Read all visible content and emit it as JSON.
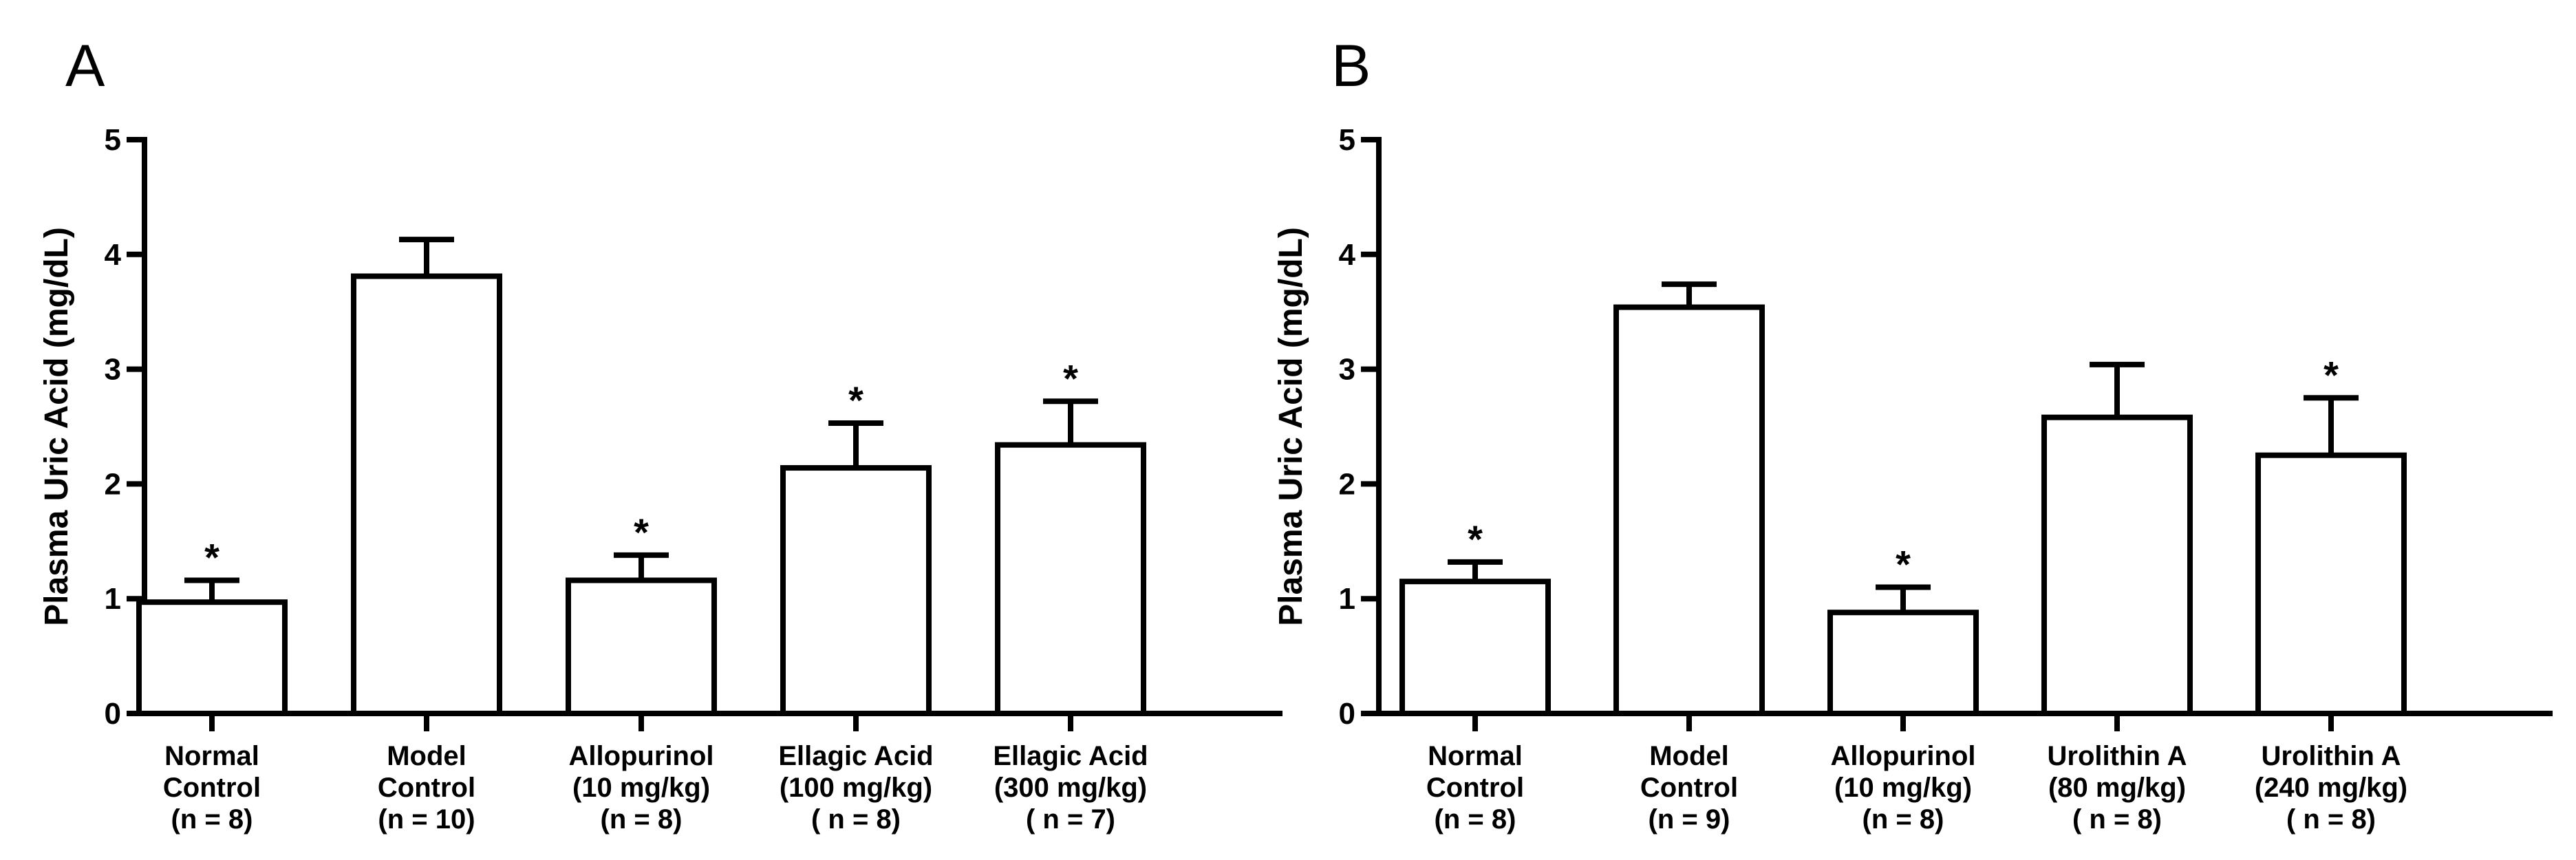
{
  "chart_data": [
    {
      "type": "bar",
      "panel_label": "A",
      "ylabel": "Plasma Uric Acid (mg/dL)",
      "ylim": [
        0,
        5
      ],
      "yticks": [
        "0",
        "1",
        "2",
        "3",
        "4",
        "5"
      ],
      "categories": [
        [
          "Normal",
          "Control",
          "(n = 8)"
        ],
        [
          "Model",
          "Control",
          "(n = 10)"
        ],
        [
          "Allopurinol",
          "(10 mg/kg)",
          "(n = 8)"
        ],
        [
          "Ellagic Acid",
          "(100 mg/kg)",
          "( n = 8)"
        ],
        [
          "Ellagic Acid",
          "(300 mg/kg)",
          "( n = 7)"
        ]
      ],
      "values": [
        0.97,
        3.81,
        1.16,
        2.14,
        2.34
      ],
      "errors": [
        0.19,
        0.32,
        0.22,
        0.39,
        0.38
      ],
      "significance": [
        "*",
        "",
        "*",
        "*",
        "*"
      ]
    },
    {
      "type": "bar",
      "panel_label": "B",
      "ylabel": "Plasma Uric Acid (mg/dL)",
      "ylim": [
        0,
        5
      ],
      "yticks": [
        "0",
        "1",
        "2",
        "3",
        "4",
        "5"
      ],
      "categories": [
        [
          "Normal",
          "Control",
          "(n = 8)"
        ],
        [
          "Model",
          "Control",
          "(n = 9)"
        ],
        [
          "Allopurinol",
          "(10 mg/kg)",
          "(n = 8)"
        ],
        [
          "Urolithin A",
          "(80 mg/kg)",
          "( n = 8)"
        ],
        [
          "Urolithin A",
          "(240 mg/kg)",
          "( n = 8)"
        ]
      ],
      "values": [
        1.15,
        3.54,
        0.88,
        2.58,
        2.25
      ],
      "errors": [
        0.17,
        0.2,
        0.22,
        0.46,
        0.5
      ],
      "significance": [
        "*",
        "",
        "*",
        "",
        "*"
      ]
    }
  ]
}
